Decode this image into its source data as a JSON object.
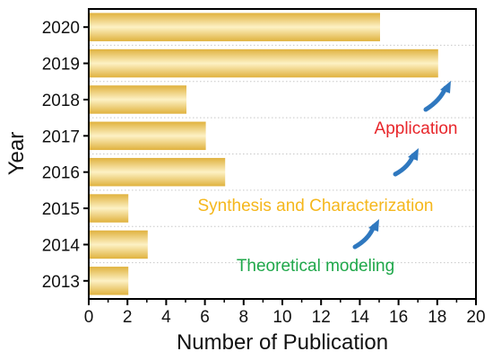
{
  "chart_data": {
    "type": "bar",
    "orientation": "horizontal",
    "categories": [
      "2020",
      "2019",
      "2018",
      "2017",
      "2016",
      "2015",
      "2014",
      "2013"
    ],
    "values": [
      15,
      18,
      5,
      6,
      7,
      2,
      3,
      2
    ],
    "xlabel": "Number of Publication",
    "ylabel": "Year",
    "xlim": [
      0,
      20
    ],
    "xticks": [
      "0",
      "2",
      "4",
      "6",
      "8",
      "10",
      "12",
      "14",
      "16",
      "18",
      "20"
    ],
    "grid": "horizontal dotted",
    "bar_color": "#f2cf6a",
    "annotations": [
      {
        "text": "Application",
        "color": "#e8262b"
      },
      {
        "text": "Synthesis and Characterization",
        "color": "#f5b71c"
      },
      {
        "text": "Theoretical modeling",
        "color": "#1fa84a"
      }
    ],
    "arrow_color": "#2f78bf"
  }
}
